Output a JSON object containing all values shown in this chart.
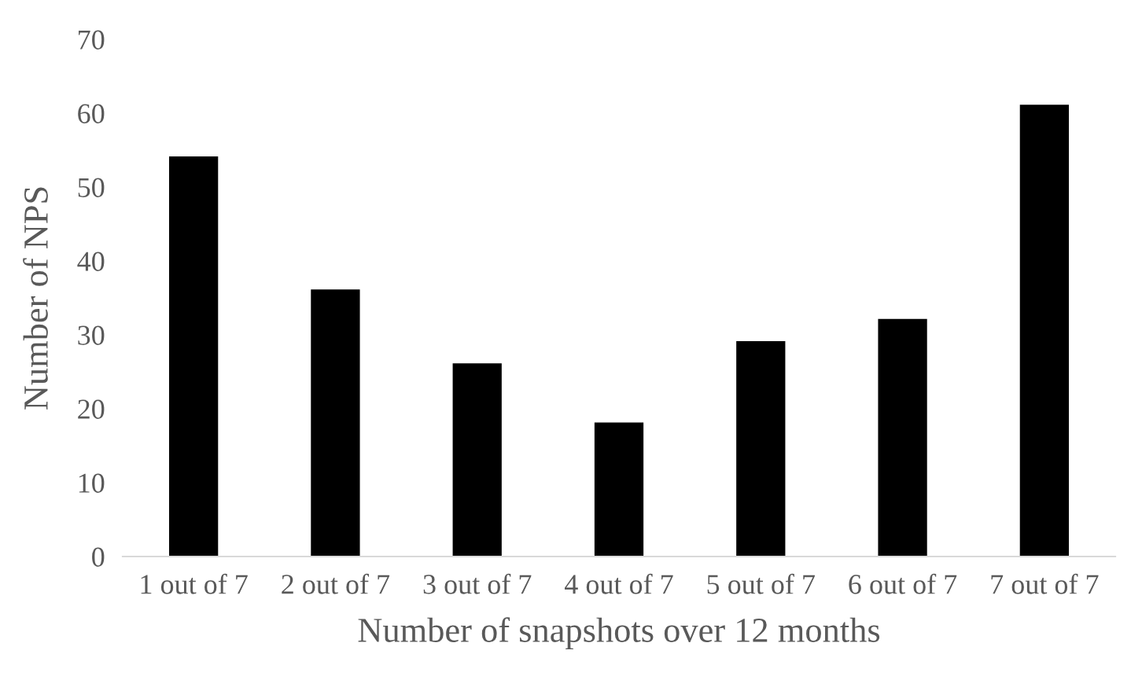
{
  "chart_data": {
    "type": "bar",
    "xlabel": "Number of snapshots over 12 months",
    "ylabel": "Number of NPS",
    "categories": [
      "1 out of 7",
      "2 out of 7",
      "3 out of 7",
      "4 out of 7",
      "5 out of 7",
      "6 out of 7",
      "7 out of 7"
    ],
    "values": [
      54,
      36,
      26,
      18,
      29,
      32,
      61
    ],
    "color": "#000000",
    "ylim": [
      0,
      70
    ],
    "yticks": [
      0,
      10,
      20,
      30,
      40,
      50,
      60,
      70
    ],
    "grid": false,
    "legend": false
  }
}
